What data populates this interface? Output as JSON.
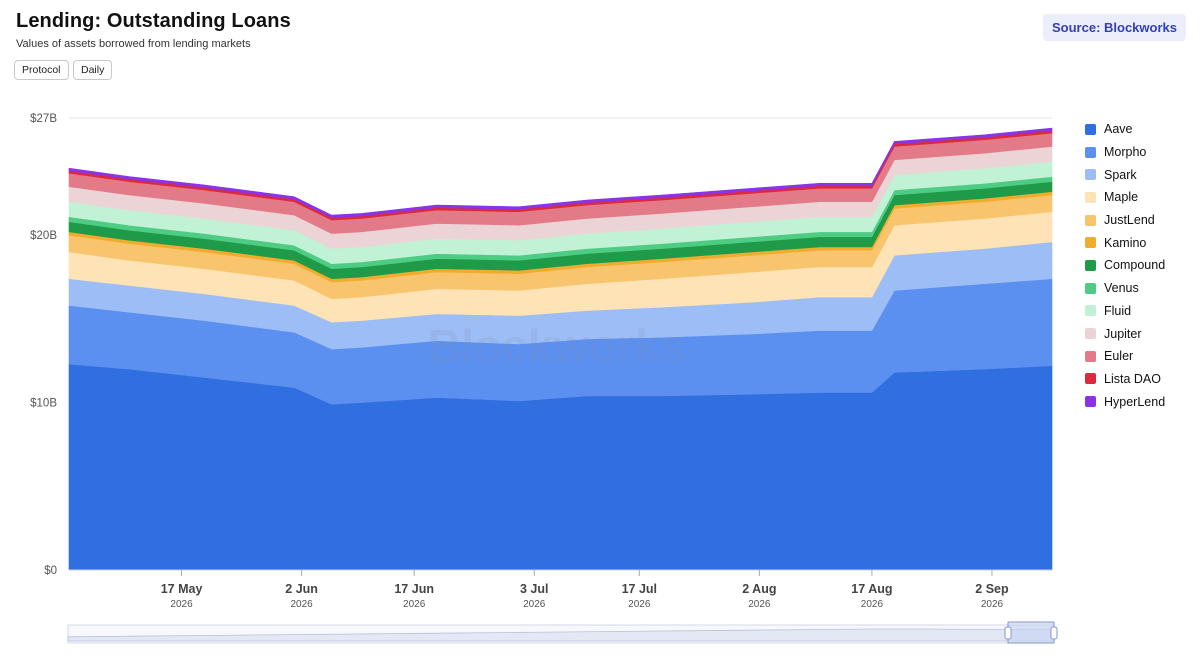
{
  "header": {
    "title": "Lending: Outstanding Loans",
    "subtitle": "Values of assets borrowed from lending markets",
    "buttons": [
      "Protocol",
      "Daily"
    ],
    "source_label": "Source: Blockworks"
  },
  "watermark": "Blockworks",
  "chart_data": {
    "type": "area",
    "stacked": true,
    "grid": true,
    "legend_position": "right",
    "yaxis": {
      "min": 0,
      "max": 27,
      "unit": "B USD",
      "ticks": [
        {
          "value": 0,
          "label": "$0"
        },
        {
          "value": 10,
          "label": "$10B"
        },
        {
          "value": 20,
          "label": "$20B"
        },
        {
          "value": 27,
          "label": "$27B"
        }
      ]
    },
    "x_start": "2026-05-02",
    "x_end": "2026-09-10",
    "xaxis_ticks": [
      {
        "date": "2026-05-17",
        "label": "17 May",
        "year": "2026"
      },
      {
        "date": "2026-06-02",
        "label": "2 Jun",
        "year": "2026"
      },
      {
        "date": "2026-06-17",
        "label": "17 Jun",
        "year": "2026"
      },
      {
        "date": "2026-07-03",
        "label": "3 Jul",
        "year": "2026"
      },
      {
        "date": "2026-07-17",
        "label": "17 Jul",
        "year": "2026"
      },
      {
        "date": "2026-08-02",
        "label": "2 Aug",
        "year": "2026"
      },
      {
        "date": "2026-08-17",
        "label": "17 Aug",
        "year": "2026"
      },
      {
        "date": "2026-09-02",
        "label": "2 Sep",
        "year": "2026"
      }
    ],
    "dates": [
      "2026-05-02",
      "2026-05-10",
      "2026-05-20",
      "2026-06-01",
      "2026-06-06",
      "2026-06-10",
      "2026-06-20",
      "2026-07-01",
      "2026-07-10",
      "2026-07-20",
      "2026-08-01",
      "2026-08-10",
      "2026-08-17",
      "2026-08-20",
      "2026-09-01",
      "2026-09-10"
    ],
    "series": [
      {
        "name": "Aave",
        "color": "#2f6fe0",
        "values": [
          12.3,
          12.0,
          11.5,
          10.9,
          9.9,
          10.0,
          10.3,
          10.1,
          10.4,
          10.4,
          10.5,
          10.6,
          10.6,
          11.8,
          12.0,
          12.2
        ]
      },
      {
        "name": "Morpho",
        "color": "#5b8ff0",
        "values": [
          3.5,
          3.4,
          3.4,
          3.3,
          3.3,
          3.3,
          3.4,
          3.4,
          3.4,
          3.5,
          3.6,
          3.7,
          3.7,
          4.9,
          5.1,
          5.2
        ]
      },
      {
        "name": "Spark",
        "color": "#9cbdf6",
        "values": [
          1.6,
          1.6,
          1.6,
          1.6,
          1.6,
          1.6,
          1.6,
          1.7,
          1.7,
          1.8,
          1.9,
          2.0,
          2.0,
          2.1,
          2.1,
          2.2
        ]
      },
      {
        "name": "Maple",
        "color": "#fde3b6",
        "values": [
          1.6,
          1.5,
          1.5,
          1.5,
          1.4,
          1.4,
          1.5,
          1.5,
          1.6,
          1.7,
          1.8,
          1.8,
          1.8,
          1.8,
          1.8,
          1.8
        ]
      },
      {
        "name": "JustLend",
        "color": "#f8c56e",
        "values": [
          1.0,
          1.0,
          1.0,
          1.0,
          1.0,
          1.0,
          1.0,
          1.0,
          1.0,
          1.0,
          1.0,
          1.0,
          1.0,
          1.0,
          1.0,
          1.0
        ]
      },
      {
        "name": "Kamino",
        "color": "#f0ac2e",
        "values": [
          0.2,
          0.2,
          0.2,
          0.2,
          0.2,
          0.2,
          0.2,
          0.2,
          0.2,
          0.2,
          0.2,
          0.2,
          0.2,
          0.2,
          0.2,
          0.2
        ]
      },
      {
        "name": "Compound",
        "color": "#1f9a48",
        "values": [
          0.6,
          0.6,
          0.6,
          0.6,
          0.6,
          0.6,
          0.6,
          0.6,
          0.6,
          0.6,
          0.6,
          0.6,
          0.6,
          0.6,
          0.6,
          0.6
        ]
      },
      {
        "name": "Venus",
        "color": "#4fcc83",
        "values": [
          0.3,
          0.3,
          0.3,
          0.3,
          0.3,
          0.3,
          0.3,
          0.3,
          0.3,
          0.3,
          0.3,
          0.3,
          0.3,
          0.3,
          0.3,
          0.3
        ]
      },
      {
        "name": "Fluid",
        "color": "#c1f2d6",
        "values": [
          0.9,
          0.9,
          0.9,
          0.9,
          0.9,
          0.9,
          0.9,
          0.9,
          0.9,
          0.9,
          0.9,
          0.9,
          0.9,
          0.9,
          0.9,
          0.9
        ]
      },
      {
        "name": "Jupiter",
        "color": "#ecd3d6",
        "values": [
          0.9,
          0.9,
          0.9,
          0.9,
          0.9,
          0.9,
          0.9,
          0.9,
          0.9,
          0.9,
          0.9,
          0.9,
          0.9,
          0.9,
          0.9,
          0.9
        ]
      },
      {
        "name": "Euler",
        "color": "#e27a88",
        "values": [
          0.8,
          0.8,
          0.8,
          0.8,
          0.8,
          0.8,
          0.8,
          0.8,
          0.8,
          0.8,
          0.8,
          0.8,
          0.8,
          0.8,
          0.8,
          0.8
        ]
      },
      {
        "name": "Lista DAO",
        "color": "#dc2a3d",
        "values": [
          0.15,
          0.15,
          0.15,
          0.15,
          0.15,
          0.15,
          0.15,
          0.15,
          0.15,
          0.15,
          0.15,
          0.15,
          0.15,
          0.15,
          0.15,
          0.15
        ]
      },
      {
        "name": "HyperLend",
        "color": "#8a34e8",
        "values": [
          0.15,
          0.15,
          0.15,
          0.15,
          0.15,
          0.15,
          0.15,
          0.15,
          0.15,
          0.15,
          0.15,
          0.15,
          0.15,
          0.15,
          0.15,
          0.15
        ]
      }
    ]
  }
}
